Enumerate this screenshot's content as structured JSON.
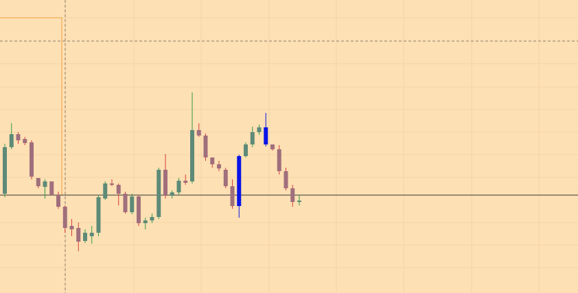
{
  "chart_data": {
    "type": "candlestick",
    "ylim": [
      0,
      428
    ],
    "grid": true,
    "up_color": "#5e8a78",
    "down_color": "#a06f7c",
    "up_wick_color": "#2e9a4a",
    "down_wick_color": "#d43a3a",
    "series": [
      {
        "open": [
          145,
          213,
          232,
          225,
          220,
          168,
          155,
          163,
          143,
          126,
          98,
          95,
          76,
          83,
          88,
          138,
          160,
          158,
          145,
          118,
          141,
          102,
          106,
          111,
          180,
          142,
          147,
          164,
          163,
          238,
          230,
          198,
          188,
          180,
          156,
          127,
          200,
          217,
          235,
          242,
          217,
          210,
          178,
          153,
          133
        ],
        "high": [
          218,
          248,
          235,
          228,
          223,
          168,
          166,
          163,
          148,
          128,
          108,
          103,
          93,
          98,
          143,
          163,
          166,
          160,
          148,
          145,
          143,
          110,
          116,
          183,
          203,
          150,
          168,
          173,
          293,
          248,
          233,
          198,
          193,
          183,
          166,
          202,
          220,
          243,
          246,
          263,
          217,
          216,
          183,
          158,
          143
        ],
        "low": [
          140,
          210,
          218,
          216,
          166,
          153,
          138,
          143,
          123,
          88,
          83,
          61,
          73,
          72,
          83,
          136,
          156,
          128,
          116,
          115,
          98,
          93,
          102,
          108,
          138,
          138,
          144,
          158,
          160,
          228,
          193,
          183,
          178,
          153,
          123,
          110,
          198,
          213,
          231,
          214,
          208,
          173,
          150,
          126,
          128
        ],
        "close": [
          213,
          232,
          223,
          219,
          170,
          156,
          163,
          143,
          126,
          95,
          93,
          75,
          88,
          88,
          140,
          160,
          158,
          145,
          118,
          141,
          102,
          106,
          111,
          180,
          142,
          147,
          164,
          161,
          238,
          230,
          198,
          188,
          182,
          156,
          127,
          200,
          217,
          235,
          242,
          217,
          210,
          178,
          153,
          133,
          135
        ],
        "colors": [
          "#5e8a78",
          "#5e8a78",
          "#a06f7c",
          "#a06f7c",
          "#a06f7c",
          "#a06f7c",
          "#5e8a78",
          "#a06f7c",
          "#a06f7c",
          "#a06f7c",
          "#a06f7c",
          "#a06f7c",
          "#5e8a78",
          "#5e8a78",
          "#5e8a78",
          "#5e8a78",
          "#a06f7c",
          "#a06f7c",
          "#a06f7c",
          "#5e8a78",
          "#a06f7c",
          "#5e8a78",
          "#5e8a78",
          "#5e8a78",
          "#a06f7c",
          "#5e8a78",
          "#5e8a78",
          "#a06f7c",
          "#5e8a78",
          "#a06f7c",
          "#a06f7c",
          "#a06f7c",
          "#a06f7c",
          "#a06f7c",
          "#a06f7c",
          "#0a14e6",
          "#5e8a78",
          "#5e8a78",
          "#5e8a78",
          "#0a14e6",
          "#a06f7c",
          "#a06f7c",
          "#a06f7c",
          "#a06f7c",
          "#5e8a78"
        ]
      }
    ]
  }
}
